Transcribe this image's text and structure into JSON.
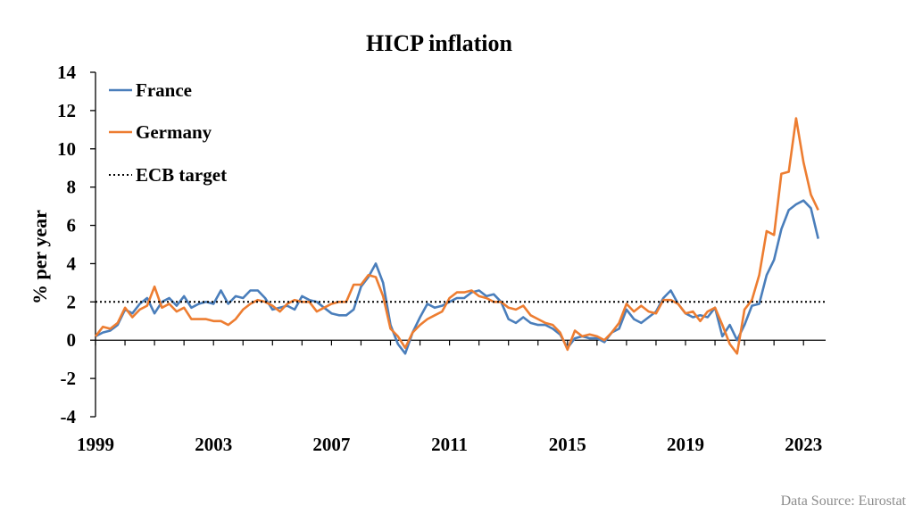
{
  "chart_data": {
    "type": "line",
    "title": "HICP inflation",
    "ylabel": "% per year",
    "xlabel": "",
    "xlim": [
      1999.0,
      2023.75
    ],
    "ylim": [
      -4,
      14
    ],
    "yticks": [
      14,
      12,
      10,
      8,
      6,
      4,
      2,
      0,
      -2,
      -4
    ],
    "xtick_labels": [
      "1999",
      "2003",
      "2007",
      "2011",
      "2015",
      "2019",
      "2023"
    ],
    "xtick_positions": [
      1999,
      2003,
      2007,
      2011,
      2015,
      2019,
      2023
    ],
    "source": "Data Source: Eurostat",
    "legend_position": "top-left",
    "grid": false,
    "series": [
      {
        "name": "France",
        "color": "#4a7ebb",
        "points": [
          [
            1999.0,
            0.2
          ],
          [
            1999.25,
            0.4
          ],
          [
            1999.5,
            0.5
          ],
          [
            1999.75,
            0.8
          ],
          [
            2000.0,
            1.6
          ],
          [
            2000.25,
            1.4
          ],
          [
            2000.5,
            1.9
          ],
          [
            2000.75,
            2.2
          ],
          [
            2001.0,
            1.4
          ],
          [
            2001.25,
            2.0
          ],
          [
            2001.5,
            2.2
          ],
          [
            2001.75,
            1.8
          ],
          [
            2002.0,
            2.3
          ],
          [
            2002.25,
            1.7
          ],
          [
            2002.5,
            1.9
          ],
          [
            2002.75,
            2.0
          ],
          [
            2003.0,
            1.9
          ],
          [
            2003.25,
            2.6
          ],
          [
            2003.5,
            1.9
          ],
          [
            2003.75,
            2.3
          ],
          [
            2004.0,
            2.2
          ],
          [
            2004.25,
            2.6
          ],
          [
            2004.5,
            2.6
          ],
          [
            2004.75,
            2.2
          ],
          [
            2005.0,
            1.6
          ],
          [
            2005.25,
            1.7
          ],
          [
            2005.5,
            1.8
          ],
          [
            2005.75,
            1.6
          ],
          [
            2006.0,
            2.3
          ],
          [
            2006.25,
            2.1
          ],
          [
            2006.5,
            2.0
          ],
          [
            2006.75,
            1.7
          ],
          [
            2007.0,
            1.4
          ],
          [
            2007.25,
            1.3
          ],
          [
            2007.5,
            1.3
          ],
          [
            2007.75,
            1.6
          ],
          [
            2008.0,
            2.8
          ],
          [
            2008.25,
            3.3
          ],
          [
            2008.5,
            4.0
          ],
          [
            2008.75,
            3.0
          ],
          [
            2009.0,
            0.8
          ],
          [
            2009.25,
            -0.2
          ],
          [
            2009.5,
            -0.7
          ],
          [
            2009.75,
            0.4
          ],
          [
            2010.0,
            1.2
          ],
          [
            2010.25,
            1.9
          ],
          [
            2010.5,
            1.7
          ],
          [
            2010.75,
            1.8
          ],
          [
            2011.0,
            2.0
          ],
          [
            2011.25,
            2.2
          ],
          [
            2011.5,
            2.2
          ],
          [
            2011.75,
            2.5
          ],
          [
            2012.0,
            2.6
          ],
          [
            2012.25,
            2.3
          ],
          [
            2012.5,
            2.4
          ],
          [
            2012.75,
            2.0
          ],
          [
            2013.0,
            1.1
          ],
          [
            2013.25,
            0.9
          ],
          [
            2013.5,
            1.2
          ],
          [
            2013.75,
            0.9
          ],
          [
            2014.0,
            0.8
          ],
          [
            2014.25,
            0.8
          ],
          [
            2014.5,
            0.6
          ],
          [
            2014.75,
            0.3
          ],
          [
            2015.0,
            -0.4
          ],
          [
            2015.25,
            0.1
          ],
          [
            2015.5,
            0.2
          ],
          [
            2015.75,
            0.1
          ],
          [
            2016.0,
            0.1
          ],
          [
            2016.25,
            -0.1
          ],
          [
            2016.5,
            0.4
          ],
          [
            2016.75,
            0.6
          ],
          [
            2017.0,
            1.6
          ],
          [
            2017.25,
            1.1
          ],
          [
            2017.5,
            0.9
          ],
          [
            2017.75,
            1.2
          ],
          [
            2018.0,
            1.5
          ],
          [
            2018.25,
            2.2
          ],
          [
            2018.5,
            2.6
          ],
          [
            2018.75,
            1.9
          ],
          [
            2019.0,
            1.4
          ],
          [
            2019.25,
            1.2
          ],
          [
            2019.5,
            1.3
          ],
          [
            2019.75,
            1.2
          ],
          [
            2020.0,
            1.7
          ],
          [
            2020.25,
            0.2
          ],
          [
            2020.5,
            0.8
          ],
          [
            2020.75,
            0.0
          ],
          [
            2021.0,
            0.8
          ],
          [
            2021.25,
            1.8
          ],
          [
            2021.5,
            1.9
          ],
          [
            2021.75,
            3.4
          ],
          [
            2022.0,
            4.2
          ],
          [
            2022.25,
            5.8
          ],
          [
            2022.5,
            6.8
          ],
          [
            2022.75,
            7.1
          ],
          [
            2023.0,
            7.3
          ],
          [
            2023.25,
            6.9
          ],
          [
            2023.5,
            5.3
          ]
        ]
      },
      {
        "name": "Germany",
        "color": "#ed7d31",
        "points": [
          [
            1999.0,
            0.2
          ],
          [
            1999.25,
            0.7
          ],
          [
            1999.5,
            0.6
          ],
          [
            1999.75,
            0.9
          ],
          [
            2000.0,
            1.7
          ],
          [
            2000.25,
            1.2
          ],
          [
            2000.5,
            1.6
          ],
          [
            2000.75,
            1.8
          ],
          [
            2001.0,
            2.8
          ],
          [
            2001.25,
            1.7
          ],
          [
            2001.5,
            1.9
          ],
          [
            2001.75,
            1.5
          ],
          [
            2002.0,
            1.7
          ],
          [
            2002.25,
            1.1
          ],
          [
            2002.5,
            1.1
          ],
          [
            2002.75,
            1.1
          ],
          [
            2003.0,
            1.0
          ],
          [
            2003.25,
            1.0
          ],
          [
            2003.5,
            0.8
          ],
          [
            2003.75,
            1.1
          ],
          [
            2004.0,
            1.6
          ],
          [
            2004.25,
            1.9
          ],
          [
            2004.5,
            2.1
          ],
          [
            2004.75,
            2.0
          ],
          [
            2005.0,
            1.8
          ],
          [
            2005.25,
            1.5
          ],
          [
            2005.5,
            1.9
          ],
          [
            2005.75,
            2.1
          ],
          [
            2006.0,
            2.0
          ],
          [
            2006.25,
            2.0
          ],
          [
            2006.5,
            1.5
          ],
          [
            2006.75,
            1.7
          ],
          [
            2007.0,
            1.9
          ],
          [
            2007.25,
            2.0
          ],
          [
            2007.5,
            2.0
          ],
          [
            2007.75,
            2.9
          ],
          [
            2008.0,
            2.9
          ],
          [
            2008.25,
            3.4
          ],
          [
            2008.5,
            3.3
          ],
          [
            2008.75,
            2.3
          ],
          [
            2009.0,
            0.6
          ],
          [
            2009.25,
            0.2
          ],
          [
            2009.5,
            -0.4
          ],
          [
            2009.75,
            0.4
          ],
          [
            2010.0,
            0.8
          ],
          [
            2010.25,
            1.1
          ],
          [
            2010.5,
            1.3
          ],
          [
            2010.75,
            1.5
          ],
          [
            2011.0,
            2.2
          ],
          [
            2011.25,
            2.5
          ],
          [
            2011.5,
            2.5
          ],
          [
            2011.75,
            2.6
          ],
          [
            2012.0,
            2.3
          ],
          [
            2012.25,
            2.2
          ],
          [
            2012.5,
            2.0
          ],
          [
            2012.75,
            2.0
          ],
          [
            2013.0,
            1.7
          ],
          [
            2013.25,
            1.6
          ],
          [
            2013.5,
            1.8
          ],
          [
            2013.75,
            1.3
          ],
          [
            2014.0,
            1.1
          ],
          [
            2014.25,
            0.9
          ],
          [
            2014.5,
            0.8
          ],
          [
            2014.75,
            0.4
          ],
          [
            2015.0,
            -0.5
          ],
          [
            2015.25,
            0.5
          ],
          [
            2015.5,
            0.2
          ],
          [
            2015.75,
            0.3
          ],
          [
            2016.0,
            0.2
          ],
          [
            2016.25,
            0.0
          ],
          [
            2016.5,
            0.4
          ],
          [
            2016.75,
            0.9
          ],
          [
            2017.0,
            1.9
          ],
          [
            2017.25,
            1.5
          ],
          [
            2017.5,
            1.8
          ],
          [
            2017.75,
            1.5
          ],
          [
            2018.0,
            1.4
          ],
          [
            2018.25,
            2.1
          ],
          [
            2018.5,
            2.1
          ],
          [
            2018.75,
            1.9
          ],
          [
            2019.0,
            1.4
          ],
          [
            2019.25,
            1.5
          ],
          [
            2019.5,
            1.0
          ],
          [
            2019.75,
            1.5
          ],
          [
            2020.0,
            1.7
          ],
          [
            2020.25,
            0.8
          ],
          [
            2020.5,
            -0.2
          ],
          [
            2020.75,
            -0.7
          ],
          [
            2021.0,
            1.6
          ],
          [
            2021.25,
            2.1
          ],
          [
            2021.5,
            3.4
          ],
          [
            2021.75,
            5.7
          ],
          [
            2022.0,
            5.5
          ],
          [
            2022.25,
            8.7
          ],
          [
            2022.5,
            8.8
          ],
          [
            2022.75,
            11.6
          ],
          [
            2023.0,
            9.3
          ],
          [
            2023.25,
            7.6
          ],
          [
            2023.5,
            6.8
          ]
        ]
      },
      {
        "name": "ECB target",
        "color": "#000000",
        "style": "dotted",
        "points": [
          [
            1999.0,
            2
          ],
          [
            2023.75,
            2
          ]
        ]
      }
    ]
  }
}
